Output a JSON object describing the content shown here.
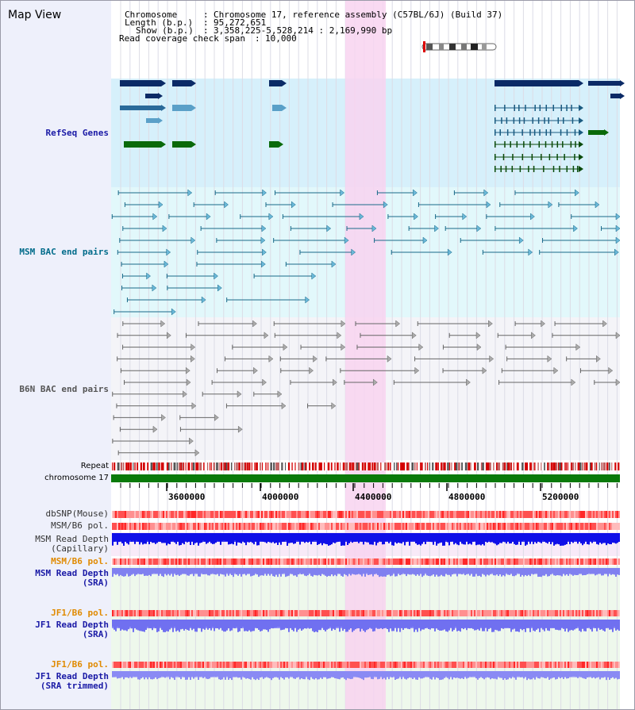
{
  "title": "Map View",
  "info": {
    "chromosome_key": "Chromosome",
    "chromosome_value": "Chromosome 17, reference assembly (C57BL/6J) (Build 37)",
    "length_key": "Length (b.p.)",
    "length_value": "95,272,651",
    "show_key": "Show (b.p.)",
    "show_value": "3,358,225-5,528,214 : 2,169,990 bp",
    "span_key": "Read coverage check span",
    "span_value": "10,000"
  },
  "tracks": {
    "refseq": "RefSeq Genes",
    "msm_bac": "MSM BAC end pairs",
    "b6n_bac": "B6N BAC end pairs",
    "repeat": "Repeat",
    "chromosome": "chromosome 17",
    "dbsnp": "dbSNP(Mouse)",
    "msm_pol": "MSM/B6 pol.",
    "msm_depth_cap_1": "MSM Read Depth",
    "msm_depth_cap_2": "(Capillary)",
    "msm_pol_2": "MSM/B6 pol.",
    "msm_depth_sra_1": "MSM Read Depth",
    "msm_depth_sra_2": "(SRA)",
    "jf1_pol": "JF1/B6 pol.",
    "jf1_depth_sra_1": "JF1 Read Depth",
    "jf1_depth_sra_2": "(SRA)",
    "jf1_pol_2": "JF1/B6 pol.",
    "jf1_depth_trim_1": "JF1 Read Depth",
    "jf1_depth_trim_2": "(SRA trimmed)"
  },
  "axis": {
    "ticks": [
      "3600000",
      "4000000",
      "4400000",
      "4800000",
      "5200000"
    ]
  },
  "colors": {
    "refseq_label": "#1a1aa6",
    "msm_label": "#006b8a",
    "b6n_label": "#444444",
    "orange_label": "#e08a00",
    "blue_label": "#1a1aa6",
    "highlight": "#f8d4f0"
  }
}
